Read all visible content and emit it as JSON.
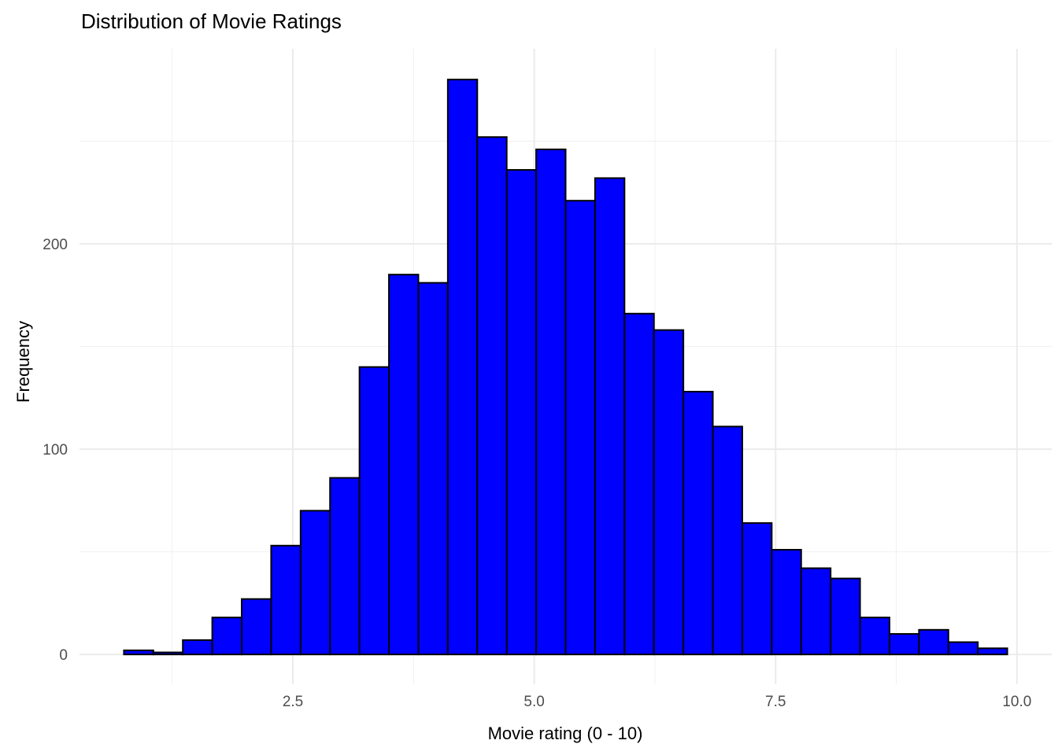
{
  "title": "Distribution of Movie Ratings",
  "axes": {
    "x_title": "Movie rating (0 - 10)",
    "y_title": "Frequency"
  },
  "chart_data": {
    "type": "bar",
    "subtype": "histogram",
    "title": "Distribution of Movie Ratings",
    "xlabel": "Movie rating (0 - 10)",
    "ylabel": "Frequency",
    "bins": 30,
    "bin_start": 0.75,
    "bin_width": 0.305,
    "counts": [
      2,
      1,
      7,
      18,
      27,
      53,
      70,
      86,
      140,
      185,
      181,
      280,
      252,
      236,
      246,
      221,
      232,
      166,
      158,
      128,
      111,
      64,
      51,
      42,
      37,
      18,
      10,
      12,
      6,
      3
    ],
    "x_tick_values": [
      2.5,
      5.0,
      7.5,
      10.0
    ],
    "x_tick_labels": [
      "2.5",
      "5.0",
      "7.5",
      "10.0"
    ],
    "x_minor_tick_values": [
      1.25,
      3.75,
      6.25,
      8.75
    ],
    "y_tick_values": [
      0,
      100,
      200
    ],
    "y_tick_labels": [
      "0",
      "100",
      "200"
    ],
    "y_minor_tick_values": [
      50,
      150,
      250
    ],
    "xlim": [
      0.29,
      10.36
    ],
    "ylim": [
      -14.5,
      295
    ],
    "grid": "on",
    "legend": "none",
    "colors": {
      "bar_fill": "#0000FF",
      "bar_stroke": "#000000",
      "grid_major": "#EBEBEB",
      "grid_minor": "#F0F0F0",
      "tick_label": "#4D4D4D",
      "background": "#FFFFFF"
    }
  }
}
